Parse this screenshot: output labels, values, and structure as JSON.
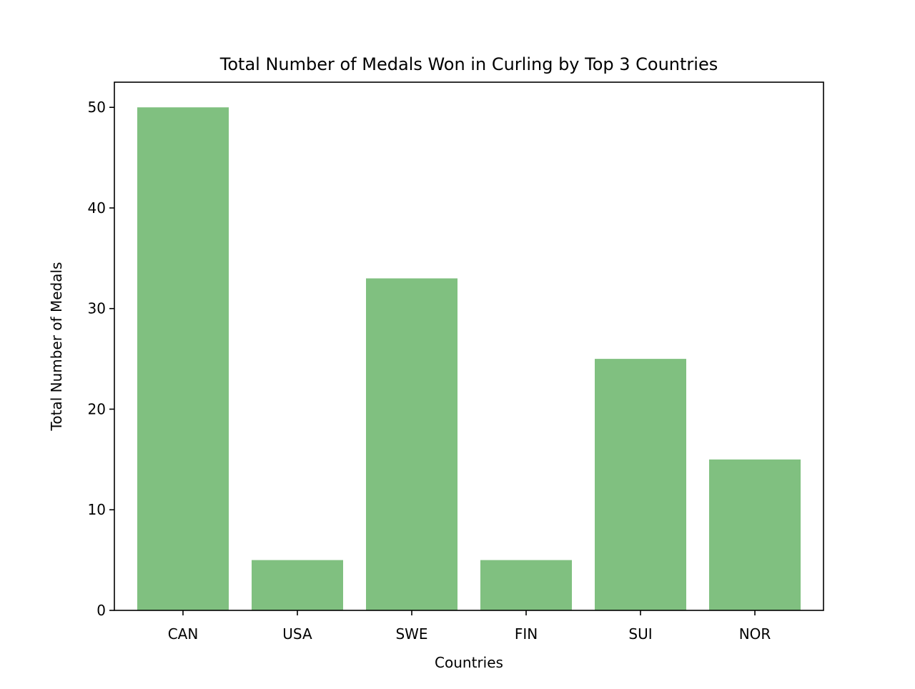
{
  "chart_data": {
    "type": "bar",
    "title": "Total Number of Medals Won in Curling by Top 3 Countries",
    "xlabel": "Countries",
    "ylabel": "Total Number of Medals",
    "categories": [
      "CAN",
      "USA",
      "SWE",
      "FIN",
      "SUI",
      "NOR"
    ],
    "values": [
      50,
      5,
      33,
      5,
      25,
      15
    ],
    "ylim": [
      0,
      52.5
    ],
    "yticks": [
      0,
      10,
      20,
      30,
      40,
      50
    ],
    "grid": false,
    "legend": "none",
    "bar_color": "#80c080"
  }
}
